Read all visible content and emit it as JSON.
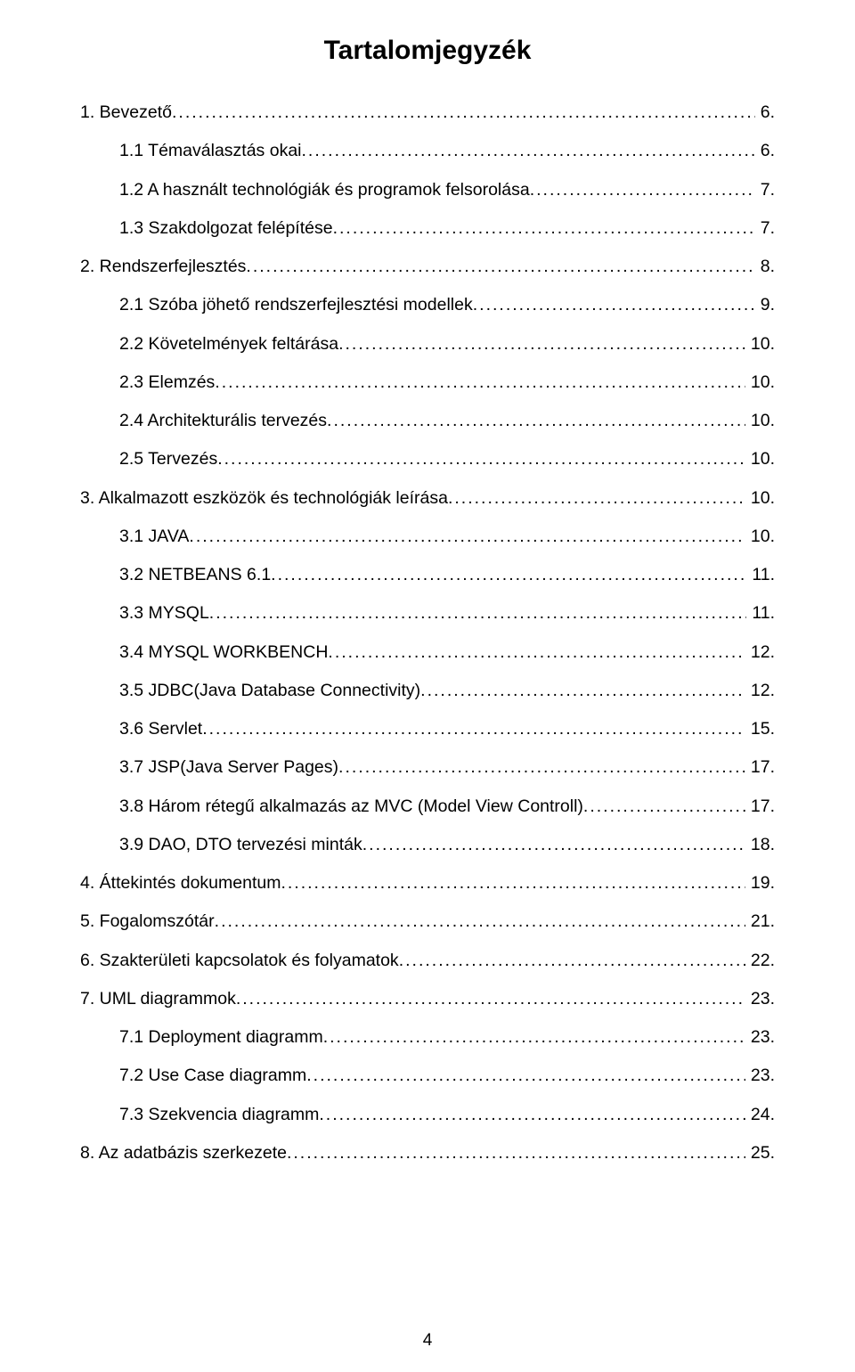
{
  "title": "Tartalomjegyzék",
  "pageNumber": "4",
  "toc": [
    {
      "indent": 0,
      "label": "1. Bevezető",
      "page": "6."
    },
    {
      "indent": 1,
      "label": "1.1 Témaválasztás okai",
      "page": "6."
    },
    {
      "indent": 1,
      "label": "1.2 A használt technológiák és programok felsorolása",
      "page": "7."
    },
    {
      "indent": 1,
      "label": "1.3 Szakdolgozat felépítése",
      "page": "7."
    },
    {
      "indent": 0,
      "label": "2. Rendszerfejlesztés",
      "page": "8."
    },
    {
      "indent": 1,
      "label": "2.1 Szóba jöhető rendszerfejlesztési modellek",
      "page": "9."
    },
    {
      "indent": 1,
      "label": "2.2 Követelmények feltárása",
      "page": "10."
    },
    {
      "indent": 1,
      "label": "2.3 Elemzés",
      "page": "10."
    },
    {
      "indent": 1,
      "label": "2.4 Architekturális tervezés",
      "page": "10."
    },
    {
      "indent": 1,
      "label": "2.5 Tervezés",
      "page": "10."
    },
    {
      "indent": 0,
      "label": "3. Alkalmazott eszközök és technológiák leírása",
      "page": "10."
    },
    {
      "indent": 1,
      "label": "3.1 JAVA",
      "page": "10."
    },
    {
      "indent": 1,
      "label": "3.2 NETBEANS 6.1",
      "page": "11."
    },
    {
      "indent": 1,
      "label": "3.3 MYSQL",
      "page": "11."
    },
    {
      "indent": 1,
      "label": "3.4 MYSQL WORKBENCH",
      "page": "12."
    },
    {
      "indent": 1,
      "label": "3.5 JDBC(Java Database Connectivity)",
      "page": "12."
    },
    {
      "indent": 1,
      "label": "3.6 Servlet",
      "page": "15."
    },
    {
      "indent": 1,
      "label": "3.7 JSP(Java Server Pages)",
      "page": "17."
    },
    {
      "indent": 1,
      "label": "3.8 Három rétegű alkalmazás az MVC (Model View Controll)",
      "page": "17."
    },
    {
      "indent": 1,
      "label": "3.9 DAO, DTO tervezési minták",
      "page": "18."
    },
    {
      "indent": 0,
      "label": "4. Áttekintés dokumentum",
      "page": "19."
    },
    {
      "indent": 0,
      "label": "5. Fogalomszótár",
      "page": "21."
    },
    {
      "indent": 0,
      "label": "6. Szakterületi kapcsolatok és folyamatok",
      "page": "22."
    },
    {
      "indent": 0,
      "label": "7. UML diagrammok",
      "page": "23."
    },
    {
      "indent": 1,
      "label": "7.1 Deployment diagramm",
      "page": "23."
    },
    {
      "indent": 1,
      "label": "7.2 Use Case diagramm",
      "page": "23."
    },
    {
      "indent": 1,
      "label": "7.3 Szekvencia diagramm",
      "page": "24."
    },
    {
      "indent": 0,
      "label": "8. Az adatbázis szerkezete",
      "page": "25."
    }
  ],
  "colors": {
    "background": "#ffffff",
    "text": "#000000"
  },
  "typography": {
    "title_fontsize": 30,
    "title_weight": "bold",
    "body_fontsize": 19.5,
    "font_family": "Arial"
  }
}
